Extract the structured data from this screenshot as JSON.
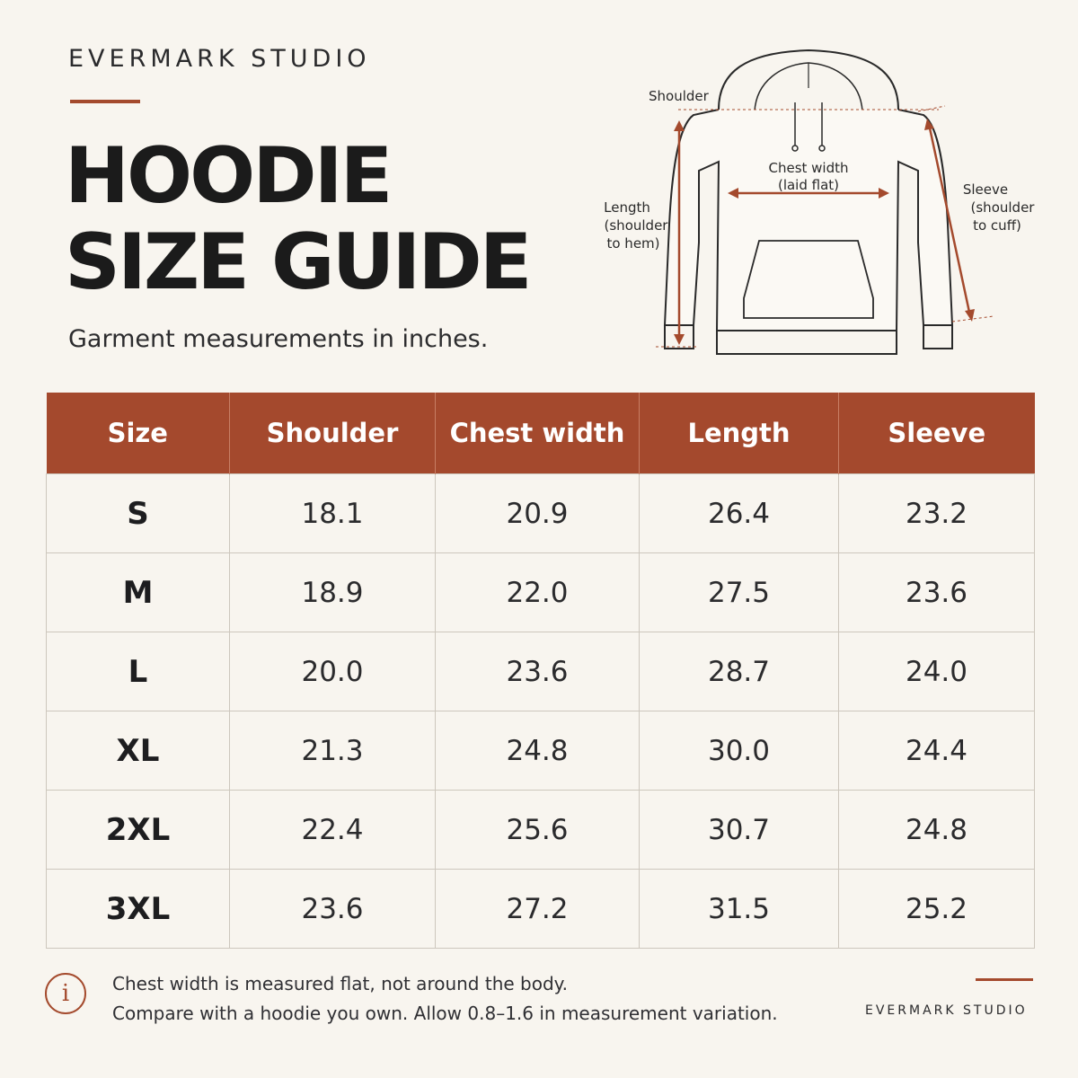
{
  "brand": "EVERMARK STUDIO",
  "title_line1": "HOODIE",
  "title_line2": "SIZE GUIDE",
  "subtitle": "Garment measurements in inches.",
  "diagram_labels": {
    "shoulder": "Shoulder",
    "chest_line1": "Chest width",
    "chest_line2": "(laid flat)",
    "length_line1": "Length",
    "length_line2": "(shoulder",
    "length_line3": "to hem)",
    "sleeve_line1": "Sleeve",
    "sleeve_line2": "(shoulder",
    "sleeve_line3": "to cuff)"
  },
  "table": {
    "headers": [
      "Size",
      "Shoulder",
      "Chest width",
      "Length",
      "Sleeve"
    ],
    "rows": [
      [
        "S",
        "18.1",
        "20.9",
        "26.4",
        "23.2"
      ],
      [
        "M",
        "18.9",
        "22.0",
        "27.5",
        "23.6"
      ],
      [
        "L",
        "20.0",
        "23.6",
        "28.7",
        "24.0"
      ],
      [
        "XL",
        "21.3",
        "24.8",
        "30.0",
        "24.4"
      ],
      [
        "2XL",
        "22.4",
        "25.6",
        "30.7",
        "24.8"
      ],
      [
        "3XL",
        "23.6",
        "27.2",
        "31.5",
        "25.2"
      ]
    ]
  },
  "footnote": {
    "icon": "info-icon",
    "line1": "Chest width is measured flat, not around the body.",
    "line2": "Compare with a hoodie you own. Allow 0.8–1.6 in measurement variation."
  },
  "colors": {
    "accent": "#a44a2d",
    "background": "#f8f5ef",
    "text": "#1d1d1f"
  }
}
